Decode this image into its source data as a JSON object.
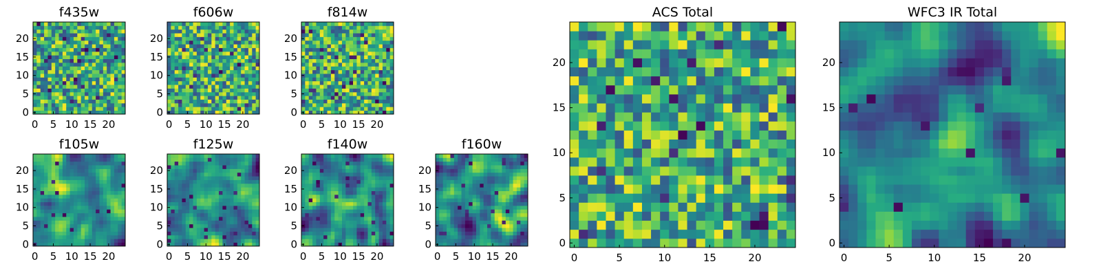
{
  "figure": {
    "background": "#ffffff",
    "colormap": "viridis"
  },
  "chart_data": [
    {
      "type": "heatmap",
      "title": "f435w",
      "grid_size": 25,
      "xlim": [
        -0.5,
        24.5
      ],
      "ylim": [
        -0.5,
        24.5
      ],
      "xticks": [
        0,
        5,
        10,
        15,
        20
      ],
      "yticks": [
        0,
        5,
        10,
        15,
        20
      ],
      "grid": false,
      "pattern": "noise",
      "seed": 11
    },
    {
      "type": "heatmap",
      "title": "f606w",
      "grid_size": 25,
      "xlim": [
        -0.5,
        24.5
      ],
      "ylim": [
        -0.5,
        24.5
      ],
      "xticks": [
        0,
        5,
        10,
        15,
        20
      ],
      "yticks": [
        0,
        5,
        10,
        15,
        20
      ],
      "grid": false,
      "pattern": "noise",
      "seed": 23
    },
    {
      "type": "heatmap",
      "title": "f814w",
      "grid_size": 25,
      "xlim": [
        -0.5,
        24.5
      ],
      "ylim": [
        -0.5,
        24.5
      ],
      "xticks": [
        0,
        5,
        10,
        15,
        20
      ],
      "yticks": [
        0,
        5,
        10,
        15,
        20
      ],
      "grid": false,
      "pattern": "noise",
      "seed": 37
    },
    {
      "type": "heatmap",
      "title": "f105w",
      "grid_size": 25,
      "xlim": [
        -0.5,
        24.5
      ],
      "ylim": [
        -0.5,
        24.5
      ],
      "xticks": [
        0,
        5,
        10,
        15,
        20
      ],
      "yticks": [
        0,
        5,
        10,
        15,
        20
      ],
      "grid": false,
      "pattern": "smooth",
      "seed": 41
    },
    {
      "type": "heatmap",
      "title": "f125w",
      "grid_size": 25,
      "xlim": [
        -0.5,
        24.5
      ],
      "ylim": [
        -0.5,
        24.5
      ],
      "xticks": [
        0,
        5,
        10,
        15,
        20
      ],
      "yticks": [
        0,
        5,
        10,
        15,
        20
      ],
      "grid": false,
      "pattern": "smooth",
      "seed": 53
    },
    {
      "type": "heatmap",
      "title": "f140w",
      "grid_size": 25,
      "xlim": [
        -0.5,
        24.5
      ],
      "ylim": [
        -0.5,
        24.5
      ],
      "xticks": [
        0,
        5,
        10,
        15,
        20
      ],
      "yticks": [
        0,
        5,
        10,
        15,
        20
      ],
      "grid": false,
      "pattern": "smooth",
      "seed": 67
    },
    {
      "type": "heatmap",
      "title": "f160w",
      "grid_size": 25,
      "xlim": [
        -0.5,
        24.5
      ],
      "ylim": [
        -0.5,
        24.5
      ],
      "xticks": [
        0,
        5,
        10,
        15,
        20
      ],
      "yticks": [
        0,
        5,
        10,
        15,
        20
      ],
      "grid": false,
      "pattern": "smooth",
      "seed": 79
    },
    {
      "type": "heatmap",
      "title": "ACS Total",
      "grid_size": 25,
      "xlim": [
        -0.5,
        24.5
      ],
      "ylim": [
        -0.5,
        24.5
      ],
      "xticks": [
        0,
        5,
        10,
        15,
        20
      ],
      "yticks": [
        0,
        5,
        10,
        15,
        20
      ],
      "grid": false,
      "pattern": "noise",
      "seed": 97
    },
    {
      "type": "heatmap",
      "title": "WFC3 IR Total",
      "grid_size": 25,
      "xlim": [
        -0.5,
        24.5
      ],
      "ylim": [
        -0.5,
        24.5
      ],
      "xticks": [
        0,
        5,
        10,
        15,
        20
      ],
      "yticks": [
        0,
        5,
        10,
        15,
        20
      ],
      "grid": false,
      "pattern": "smooth",
      "seed": 101
    }
  ]
}
